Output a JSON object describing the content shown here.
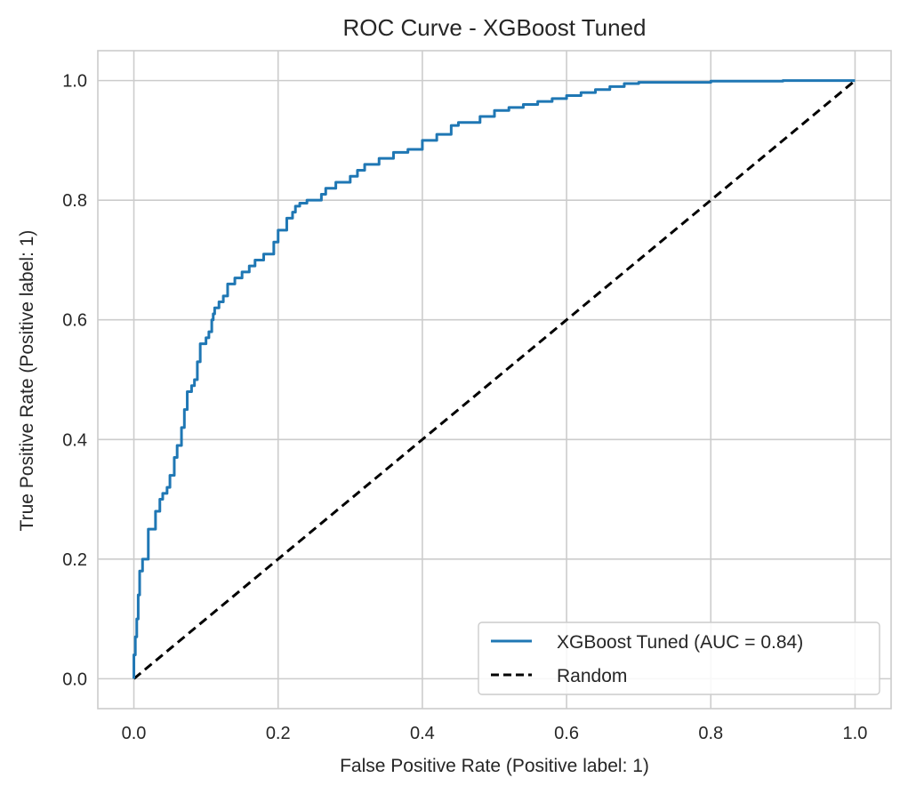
{
  "chart_data": {
    "type": "line",
    "title": "ROC Curve - XGBoost Tuned",
    "xlabel": "False Positive Rate (Positive label: 1)",
    "ylabel": "True Positive Rate (Positive label: 1)",
    "xlim": [
      -0.05,
      1.05
    ],
    "ylim": [
      -0.05,
      1.05
    ],
    "xticks": [
      "0.0",
      "0.2",
      "0.4",
      "0.6",
      "0.8",
      "1.0"
    ],
    "yticks": [
      "0.0",
      "0.2",
      "0.4",
      "0.6",
      "0.8",
      "1.0"
    ],
    "grid": true,
    "legend_position": "lower-right",
    "series": [
      {
        "name": "XGBoost Tuned (AUC = 0.84)",
        "color": "#1f77b4",
        "style": "solid",
        "x": [
          0.0,
          0.002,
          0.004,
          0.006,
          0.008,
          0.012,
          0.016,
          0.02,
          0.03,
          0.036,
          0.04,
          0.046,
          0.05,
          0.056,
          0.06,
          0.066,
          0.07,
          0.074,
          0.08,
          0.084,
          0.088,
          0.092,
          0.096,
          0.1,
          0.104,
          0.108,
          0.11,
          0.112,
          0.118,
          0.124,
          0.13,
          0.14,
          0.15,
          0.16,
          0.168,
          0.18,
          0.194,
          0.2,
          0.212,
          0.22,
          0.224,
          0.23,
          0.24,
          0.25,
          0.26,
          0.266,
          0.28,
          0.3,
          0.31,
          0.32,
          0.34,
          0.36,
          0.38,
          0.4,
          0.42,
          0.44,
          0.45,
          0.48,
          0.5,
          0.52,
          0.54,
          0.56,
          0.58,
          0.6,
          0.62,
          0.64,
          0.66,
          0.68,
          0.7,
          0.8,
          0.9,
          1.0
        ],
        "y": [
          0.0,
          0.04,
          0.07,
          0.1,
          0.14,
          0.18,
          0.2,
          0.2,
          0.25,
          0.28,
          0.3,
          0.31,
          0.32,
          0.34,
          0.37,
          0.39,
          0.42,
          0.45,
          0.48,
          0.49,
          0.5,
          0.53,
          0.56,
          0.56,
          0.57,
          0.58,
          0.6,
          0.61,
          0.62,
          0.63,
          0.64,
          0.66,
          0.67,
          0.68,
          0.69,
          0.7,
          0.71,
          0.73,
          0.75,
          0.77,
          0.78,
          0.79,
          0.795,
          0.8,
          0.8,
          0.81,
          0.82,
          0.83,
          0.84,
          0.85,
          0.86,
          0.87,
          0.88,
          0.885,
          0.9,
          0.91,
          0.925,
          0.93,
          0.94,
          0.95,
          0.955,
          0.96,
          0.965,
          0.97,
          0.975,
          0.98,
          0.985,
          0.99,
          0.995,
          0.997,
          0.999,
          1.0
        ]
      },
      {
        "name": "Random",
        "color": "#000000",
        "style": "dashed",
        "x": [
          0.0,
          1.0
        ],
        "y": [
          0.0,
          1.0
        ]
      }
    ]
  }
}
